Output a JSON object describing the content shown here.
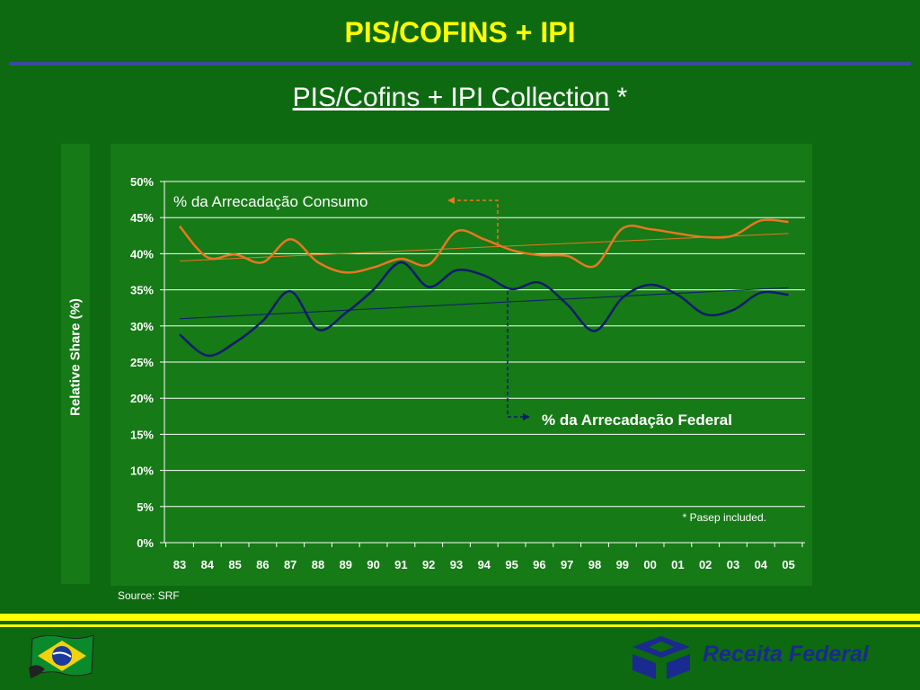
{
  "slide": {
    "title": "PIS/COFINS + IPI",
    "subtitle": "PIS/Cofins + IPI  Collection",
    "subtitle_marker": "*",
    "source": "Source: SRF",
    "logo_text": "Receita Federal"
  },
  "colors": {
    "background": "#0d6a10",
    "panel": "#167a16",
    "title": "#ffff00",
    "rule": "#3a4a9e",
    "consumo": "#e87722",
    "federal": "#0d1b6e"
  },
  "chart_data": {
    "type": "line",
    "ylabel": "Relative Share (%)",
    "ylim": [
      0,
      50
    ],
    "yticks": [
      "0%",
      "5%",
      "10%",
      "15%",
      "20%",
      "25%",
      "30%",
      "35%",
      "40%",
      "45%",
      "50%"
    ],
    "categories": [
      "83",
      "84",
      "85",
      "86",
      "87",
      "88",
      "89",
      "90",
      "91",
      "92",
      "93",
      "94",
      "95",
      "96",
      "97",
      "98",
      "99",
      "00",
      "01",
      "02",
      "03",
      "04",
      "05"
    ],
    "series": [
      {
        "name": "% da Arrecadação Consumo",
        "color": "#e87722",
        "values": [
          43.8,
          39.5,
          39.9,
          38.8,
          42.0,
          38.8,
          37.4,
          38.1,
          39.3,
          38.5,
          43.1,
          42.0,
          40.5,
          39.8,
          39.7,
          38.3,
          43.5,
          43.4,
          42.8,
          42.3,
          42.5,
          44.6,
          44.4
        ],
        "trend": [
          39.0,
          42.8
        ]
      },
      {
        "name": "% da Arrecadação Federal",
        "color": "#0d1b6e",
        "values": [
          28.8,
          25.9,
          27.7,
          30.7,
          34.8,
          29.5,
          31.8,
          35.0,
          38.8,
          35.4,
          37.7,
          37.0,
          35.1,
          36.0,
          33.0,
          29.3,
          33.9,
          35.7,
          34.3,
          31.6,
          32.2,
          34.6,
          34.3
        ],
        "trend": [
          31.0,
          35.3
        ]
      }
    ],
    "note": "* Pasep included."
  }
}
